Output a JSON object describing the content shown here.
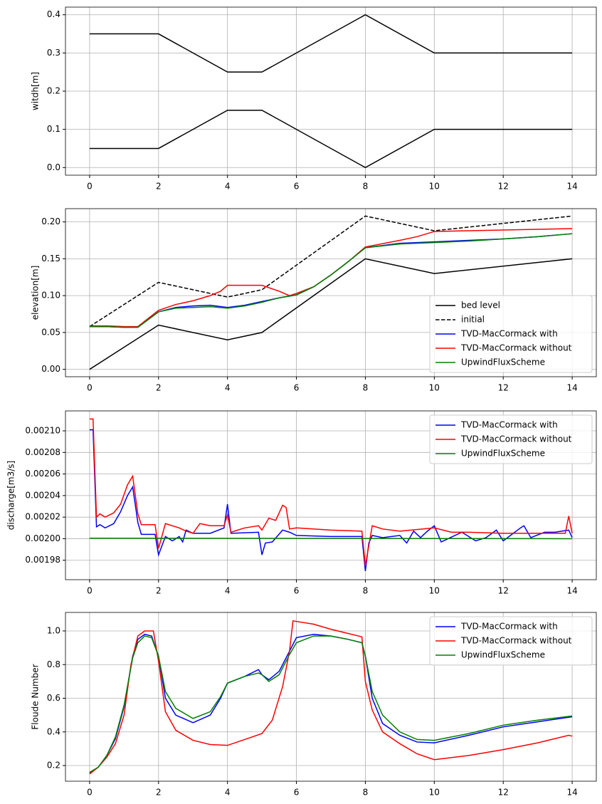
{
  "chart_data": [
    {
      "type": "line",
      "ylabel": "witdh[m]",
      "xlim": [
        -0.7,
        14.7
      ],
      "ylim": [
        -0.02,
        0.42
      ],
      "xticks": [
        0,
        2,
        4,
        6,
        8,
        10,
        12,
        14
      ],
      "yticks": [
        {
          "value": 0,
          "label": "0.0"
        },
        0.1,
        0.2,
        0.3,
        0.4
      ],
      "grid": true,
      "series": [
        {
          "color": "#000000",
          "x": [
            0,
            2,
            4,
            5,
            8,
            10,
            14
          ],
          "values": [
            0.35,
            0.35,
            0.25,
            0.25,
            0.4,
            0.3,
            0.3
          ]
        },
        {
          "color": "#000000",
          "x": [
            0,
            2,
            4,
            5,
            8,
            10,
            14
          ],
          "values": [
            0.05,
            0.05,
            0.15,
            0.15,
            0,
            0.1,
            0.1
          ]
        }
      ]
    },
    {
      "type": "line",
      "ylabel": "elevation[m]",
      "xlim": [
        -0.7,
        14.7
      ],
      "ylim": [
        -0.01,
        0.218
      ],
      "xticks": [
        0,
        2,
        4,
        6,
        8,
        10,
        12,
        14
      ],
      "yticks": [
        {
          "value": 0,
          "label": "0.00"
        },
        0.05,
        {
          "value": 0.1,
          "label": "0.10"
        },
        0.15,
        {
          "value": 0.2,
          "label": "0.20"
        }
      ],
      "grid": true,
      "legend": "lower right",
      "series": [
        {
          "name": "bed level",
          "color": "#000000",
          "x": [
            0,
            2,
            4,
            5,
            8,
            10,
            14
          ],
          "values": [
            0,
            0.06,
            0.04,
            0.05,
            0.15,
            0.13,
            0.15
          ]
        },
        {
          "name": "initial",
          "color": "#000000",
          "linestyle": "dashed",
          "x": [
            0,
            2,
            4,
            5,
            8,
            10,
            14
          ],
          "values": [
            0.058,
            0.118,
            0.098,
            0.108,
            0.208,
            0.188,
            0.208
          ]
        },
        {
          "name": "TVD-MacCormack with",
          "color": "#0000ff",
          "x": [
            0,
            0.5,
            1,
            1.4,
            2,
            2.5,
            3,
            3.5,
            4,
            4.5,
            5,
            5.5,
            6,
            6.5,
            7,
            7.5,
            8,
            9,
            10,
            11,
            12,
            13,
            14
          ],
          "values": [
            0.058,
            0.058,
            0.057,
            0.057,
            0.078,
            0.084,
            0.086,
            0.087,
            0.084,
            0.087,
            0.092,
            0.097,
            0.101,
            0.112,
            0.128,
            0.146,
            0.165,
            0.171,
            0.173,
            0.175,
            0.177,
            0.18,
            0.184
          ]
        },
        {
          "name": "TVD-MacCormack without",
          "color": "#ff0000",
          "x": [
            0,
            0.5,
            1,
            1.4,
            2,
            2.5,
            3,
            3.5,
            3.8,
            4,
            4.5,
            5,
            5.5,
            5.8,
            6,
            6.5,
            7,
            7.5,
            8,
            9,
            9.5,
            10,
            11,
            12,
            13,
            14
          ],
          "values": [
            0.059,
            0.059,
            0.058,
            0.058,
            0.08,
            0.088,
            0.093,
            0.1,
            0.106,
            0.114,
            0.114,
            0.114,
            0.106,
            0.1,
            0.103,
            0.112,
            0.128,
            0.146,
            0.166,
            0.175,
            0.18,
            0.187,
            0.188,
            0.189,
            0.19,
            0.191
          ]
        },
        {
          "name": "UpwindFluxScheme",
          "color": "#008000",
          "x": [
            0,
            0.5,
            1,
            1.4,
            2,
            2.5,
            3,
            3.5,
            4,
            4.5,
            5,
            5.5,
            6,
            6.5,
            7,
            7.5,
            8,
            9,
            10,
            11,
            12,
            13,
            14
          ],
          "values": [
            0.058,
            0.058,
            0.057,
            0.057,
            0.078,
            0.083,
            0.084,
            0.085,
            0.083,
            0.086,
            0.091,
            0.097,
            0.101,
            0.112,
            0.128,
            0.146,
            0.165,
            0.17,
            0.172,
            0.174,
            0.177,
            0.18,
            0.184
          ]
        }
      ]
    },
    {
      "type": "line",
      "ylabel": "discharge[m3/s]",
      "xlim": [
        -0.7,
        14.7
      ],
      "ylim": [
        0.001962,
        0.0021185
      ],
      "xticks": [
        0,
        2,
        4,
        6,
        8,
        10,
        12,
        14
      ],
      "yticks": [
        0.00198,
        {
          "value": 0.002,
          "label": "0.00200"
        },
        0.00202,
        0.00204,
        0.00206,
        0.00208,
        {
          "value": 0.0021,
          "label": "0.00210"
        }
      ],
      "grid": true,
      "legend": "upper right",
      "series": [
        {
          "name": "TVD-MacCormack with",
          "color": "#0000ff",
          "x": [
            0,
            0.1,
            0.2,
            0.3,
            0.45,
            0.7,
            0.9,
            1.1,
            1.25,
            1.4,
            1.5,
            1.9,
            2,
            2.2,
            2.4,
            2.6,
            2.7,
            2.8,
            3,
            3.5,
            3.9,
            4,
            4.1,
            4.9,
            5,
            5.1,
            5.3,
            5.6,
            5.8,
            6,
            7,
            7.9,
            8,
            8.1,
            8.2,
            8.5,
            9,
            9.2,
            9.4,
            9.6,
            9.8,
            10,
            10.2,
            10.8,
            11.2,
            11.5,
            11.8,
            12,
            12.5,
            12.6,
            12.8,
            13.2,
            13.5,
            13.9,
            14
          ],
          "values": [
            0.002101,
            0.002101,
            0.002011,
            0.002013,
            0.00201,
            0.002014,
            0.002025,
            0.00204,
            0.002048,
            0.002015,
            0.002004,
            0.002004,
            0.001985,
            0.002002,
            0.001998,
            0.002002,
            0.001997,
            0.002008,
            0.002005,
            0.002005,
            0.00201,
            0.002032,
            0.002005,
            0.002006,
            0.001985,
            0.001996,
            0.001997,
            0.002008,
            0.002006,
            0.002003,
            0.002002,
            0.002002,
            0.00197,
            0.001996,
            0.002003,
            0.002001,
            0.002003,
            0.001996,
            0.002007,
            0.002001,
            0.002007,
            0.002012,
            0.001997,
            0.002006,
            0.001998,
            0.002001,
            0.002008,
            0.001998,
            0.00201,
            0.002012,
            0.002001,
            0.002006,
            0.002006,
            0.002008,
            0.002001
          ]
        },
        {
          "name": "TVD-MacCormack without",
          "color": "#ff0000",
          "x": [
            0,
            0.1,
            0.2,
            0.3,
            0.45,
            0.7,
            0.9,
            1.1,
            1.25,
            1.4,
            1.5,
            1.9,
            2,
            2.2,
            2.6,
            2.8,
            3,
            3.2,
            3.5,
            3.9,
            4,
            4.1,
            4.5,
            4.9,
            5,
            5.2,
            5.4,
            5.6,
            5.7,
            5.8,
            6,
            7,
            7.9,
            8,
            8.2,
            8.5,
            9,
            10,
            10.5,
            11,
            12,
            13,
            13.8,
            13.9,
            14
          ],
          "values": [
            0.002111,
            0.002111,
            0.00202,
            0.002023,
            0.00202,
            0.002024,
            0.002032,
            0.00205,
            0.002058,
            0.002023,
            0.002013,
            0.002013,
            0.001991,
            0.002014,
            0.00201,
            0.002007,
            0.002005,
            0.002014,
            0.002012,
            0.002012,
            0.002022,
            0.002006,
            0.00201,
            0.002012,
            0.002008,
            0.002019,
            0.002017,
            0.002031,
            0.002029,
            0.002009,
            0.00201,
            0.002008,
            0.002007,
            0.001975,
            0.002012,
            0.002009,
            0.002007,
            0.00201,
            0.002006,
            0.002006,
            0.002005,
            0.002005,
            0.002005,
            0.002021,
            0.002005
          ]
        },
        {
          "name": "UpwindFluxScheme",
          "color": "#008000",
          "x": [
            0,
            14
          ],
          "values": [
            0.0020005,
            0.002
          ]
        }
      ]
    },
    {
      "type": "line",
      "ylabel": "Floude Number",
      "xlim": [
        -0.7,
        14.7
      ],
      "ylim": [
        0.107,
        1.11
      ],
      "xticks": [
        0,
        2,
        4,
        6,
        8,
        10,
        12,
        14
      ],
      "yticks": [
        0.2,
        0.4,
        0.6,
        0.8,
        {
          "value": 1,
          "label": "1.0"
        }
      ],
      "grid": true,
      "legend": "upper right",
      "series": [
        {
          "name": "TVD-MacCormack with",
          "color": "#0000ff",
          "x": [
            0,
            0.25,
            0.5,
            0.75,
            1,
            1.25,
            1.4,
            1.6,
            1.8,
            2,
            2.2,
            2.5,
            3,
            3.5,
            3.8,
            4,
            4.5,
            4.9,
            5,
            5.2,
            5.5,
            5.8,
            6,
            6.5,
            7,
            7.5,
            7.9,
            8,
            8.2,
            8.5,
            9,
            9.5,
            10,
            11,
            12,
            13,
            14
          ],
          "values": [
            0.155,
            0.19,
            0.26,
            0.36,
            0.55,
            0.85,
            0.95,
            0.98,
            0.97,
            0.85,
            0.6,
            0.5,
            0.455,
            0.5,
            0.6,
            0.69,
            0.73,
            0.77,
            0.74,
            0.71,
            0.76,
            0.88,
            0.96,
            0.98,
            0.97,
            0.95,
            0.93,
            0.85,
            0.6,
            0.45,
            0.38,
            0.34,
            0.335,
            0.38,
            0.43,
            0.46,
            0.49
          ]
        },
        {
          "name": "TVD-MacCormack without",
          "color": "#ff0000",
          "x": [
            0,
            0.25,
            0.5,
            0.75,
            1,
            1.2,
            1.4,
            1.6,
            1.85,
            2,
            2.2,
            2.5,
            3,
            3.5,
            4,
            4.5,
            5,
            5.3,
            5.6,
            5.8,
            5.9,
            6.5,
            7,
            7.5,
            7.9,
            8,
            8.2,
            8.5,
            9,
            9.5,
            10,
            11,
            12,
            13,
            13.9,
            14
          ],
          "values": [
            0.15,
            0.19,
            0.25,
            0.33,
            0.5,
            0.8,
            0.97,
            1.0,
            1.0,
            0.82,
            0.52,
            0.41,
            0.35,
            0.325,
            0.32,
            0.355,
            0.39,
            0.47,
            0.67,
            0.88,
            1.06,
            1.04,
            1.01,
            0.985,
            0.965,
            0.7,
            0.53,
            0.4,
            0.33,
            0.27,
            0.235,
            0.26,
            0.295,
            0.335,
            0.38,
            0.375
          ]
        },
        {
          "name": "UpwindFluxScheme",
          "color": "#008000",
          "x": [
            0,
            0.25,
            0.5,
            0.75,
            1,
            1.25,
            1.4,
            1.6,
            1.8,
            2,
            2.2,
            2.5,
            3,
            3.5,
            3.8,
            4,
            4.5,
            4.9,
            5,
            5.2,
            5.5,
            5.8,
            6,
            6.5,
            7,
            7.5,
            7.9,
            8,
            8.2,
            8.5,
            9,
            9.5,
            10,
            11,
            12,
            13,
            14
          ],
          "values": [
            0.16,
            0.19,
            0.26,
            0.37,
            0.56,
            0.84,
            0.93,
            0.97,
            0.96,
            0.85,
            0.64,
            0.54,
            0.48,
            0.52,
            0.61,
            0.69,
            0.73,
            0.75,
            0.74,
            0.7,
            0.74,
            0.86,
            0.93,
            0.97,
            0.97,
            0.95,
            0.93,
            0.85,
            0.64,
            0.5,
            0.4,
            0.355,
            0.35,
            0.39,
            0.44,
            0.47,
            0.495
          ]
        }
      ]
    }
  ]
}
